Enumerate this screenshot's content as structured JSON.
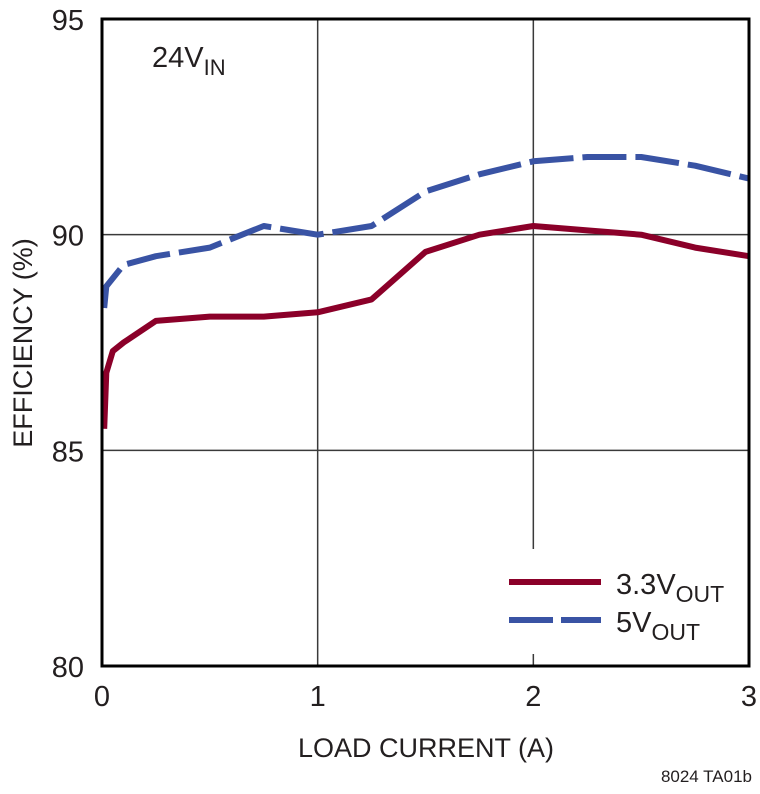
{
  "chart_data": {
    "type": "line",
    "title": "",
    "annotation": {
      "main": "24V",
      "sub": "IN"
    },
    "xlabel": "LOAD CURRENT (A)",
    "ylabel": "EFFICIENCY (%)",
    "xlim": [
      0,
      3
    ],
    "ylim": [
      80,
      95
    ],
    "xticks": [
      0,
      1,
      2,
      3
    ],
    "yticks": [
      80,
      85,
      90,
      95
    ],
    "grid": true,
    "legend_position": "lower right",
    "series": [
      {
        "name": "3.3VOUT",
        "label_main": "3.3V",
        "label_sub": "OUT",
        "color": "#8b0029",
        "style": "solid",
        "x": [
          0.01,
          0.02,
          0.05,
          0.1,
          0.25,
          0.5,
          0.75,
          1.0,
          1.25,
          1.5,
          1.75,
          2.0,
          2.25,
          2.5,
          2.75,
          3.0
        ],
        "y": [
          85.5,
          86.8,
          87.3,
          87.5,
          88.0,
          88.1,
          88.1,
          88.2,
          88.5,
          89.6,
          90.0,
          90.2,
          90.1,
          90.0,
          89.7,
          89.5
        ]
      },
      {
        "name": "5VOUT",
        "label_main": "5V",
        "label_sub": "OUT",
        "color": "#3953a4",
        "style": "dashed",
        "x": [
          0.01,
          0.02,
          0.1,
          0.25,
          0.5,
          0.75,
          1.0,
          1.25,
          1.5,
          1.75,
          2.0,
          2.25,
          2.5,
          2.75,
          3.0
        ],
        "y": [
          88.3,
          88.8,
          89.3,
          89.5,
          89.7,
          90.2,
          90.0,
          90.2,
          91.0,
          91.4,
          91.7,
          91.8,
          91.8,
          91.6,
          91.3
        ]
      }
    ]
  },
  "footer_code": "8024 TA01b",
  "colors": {
    "frame": "#000000",
    "grid": "#3a3a3a",
    "text": "#231f20"
  }
}
